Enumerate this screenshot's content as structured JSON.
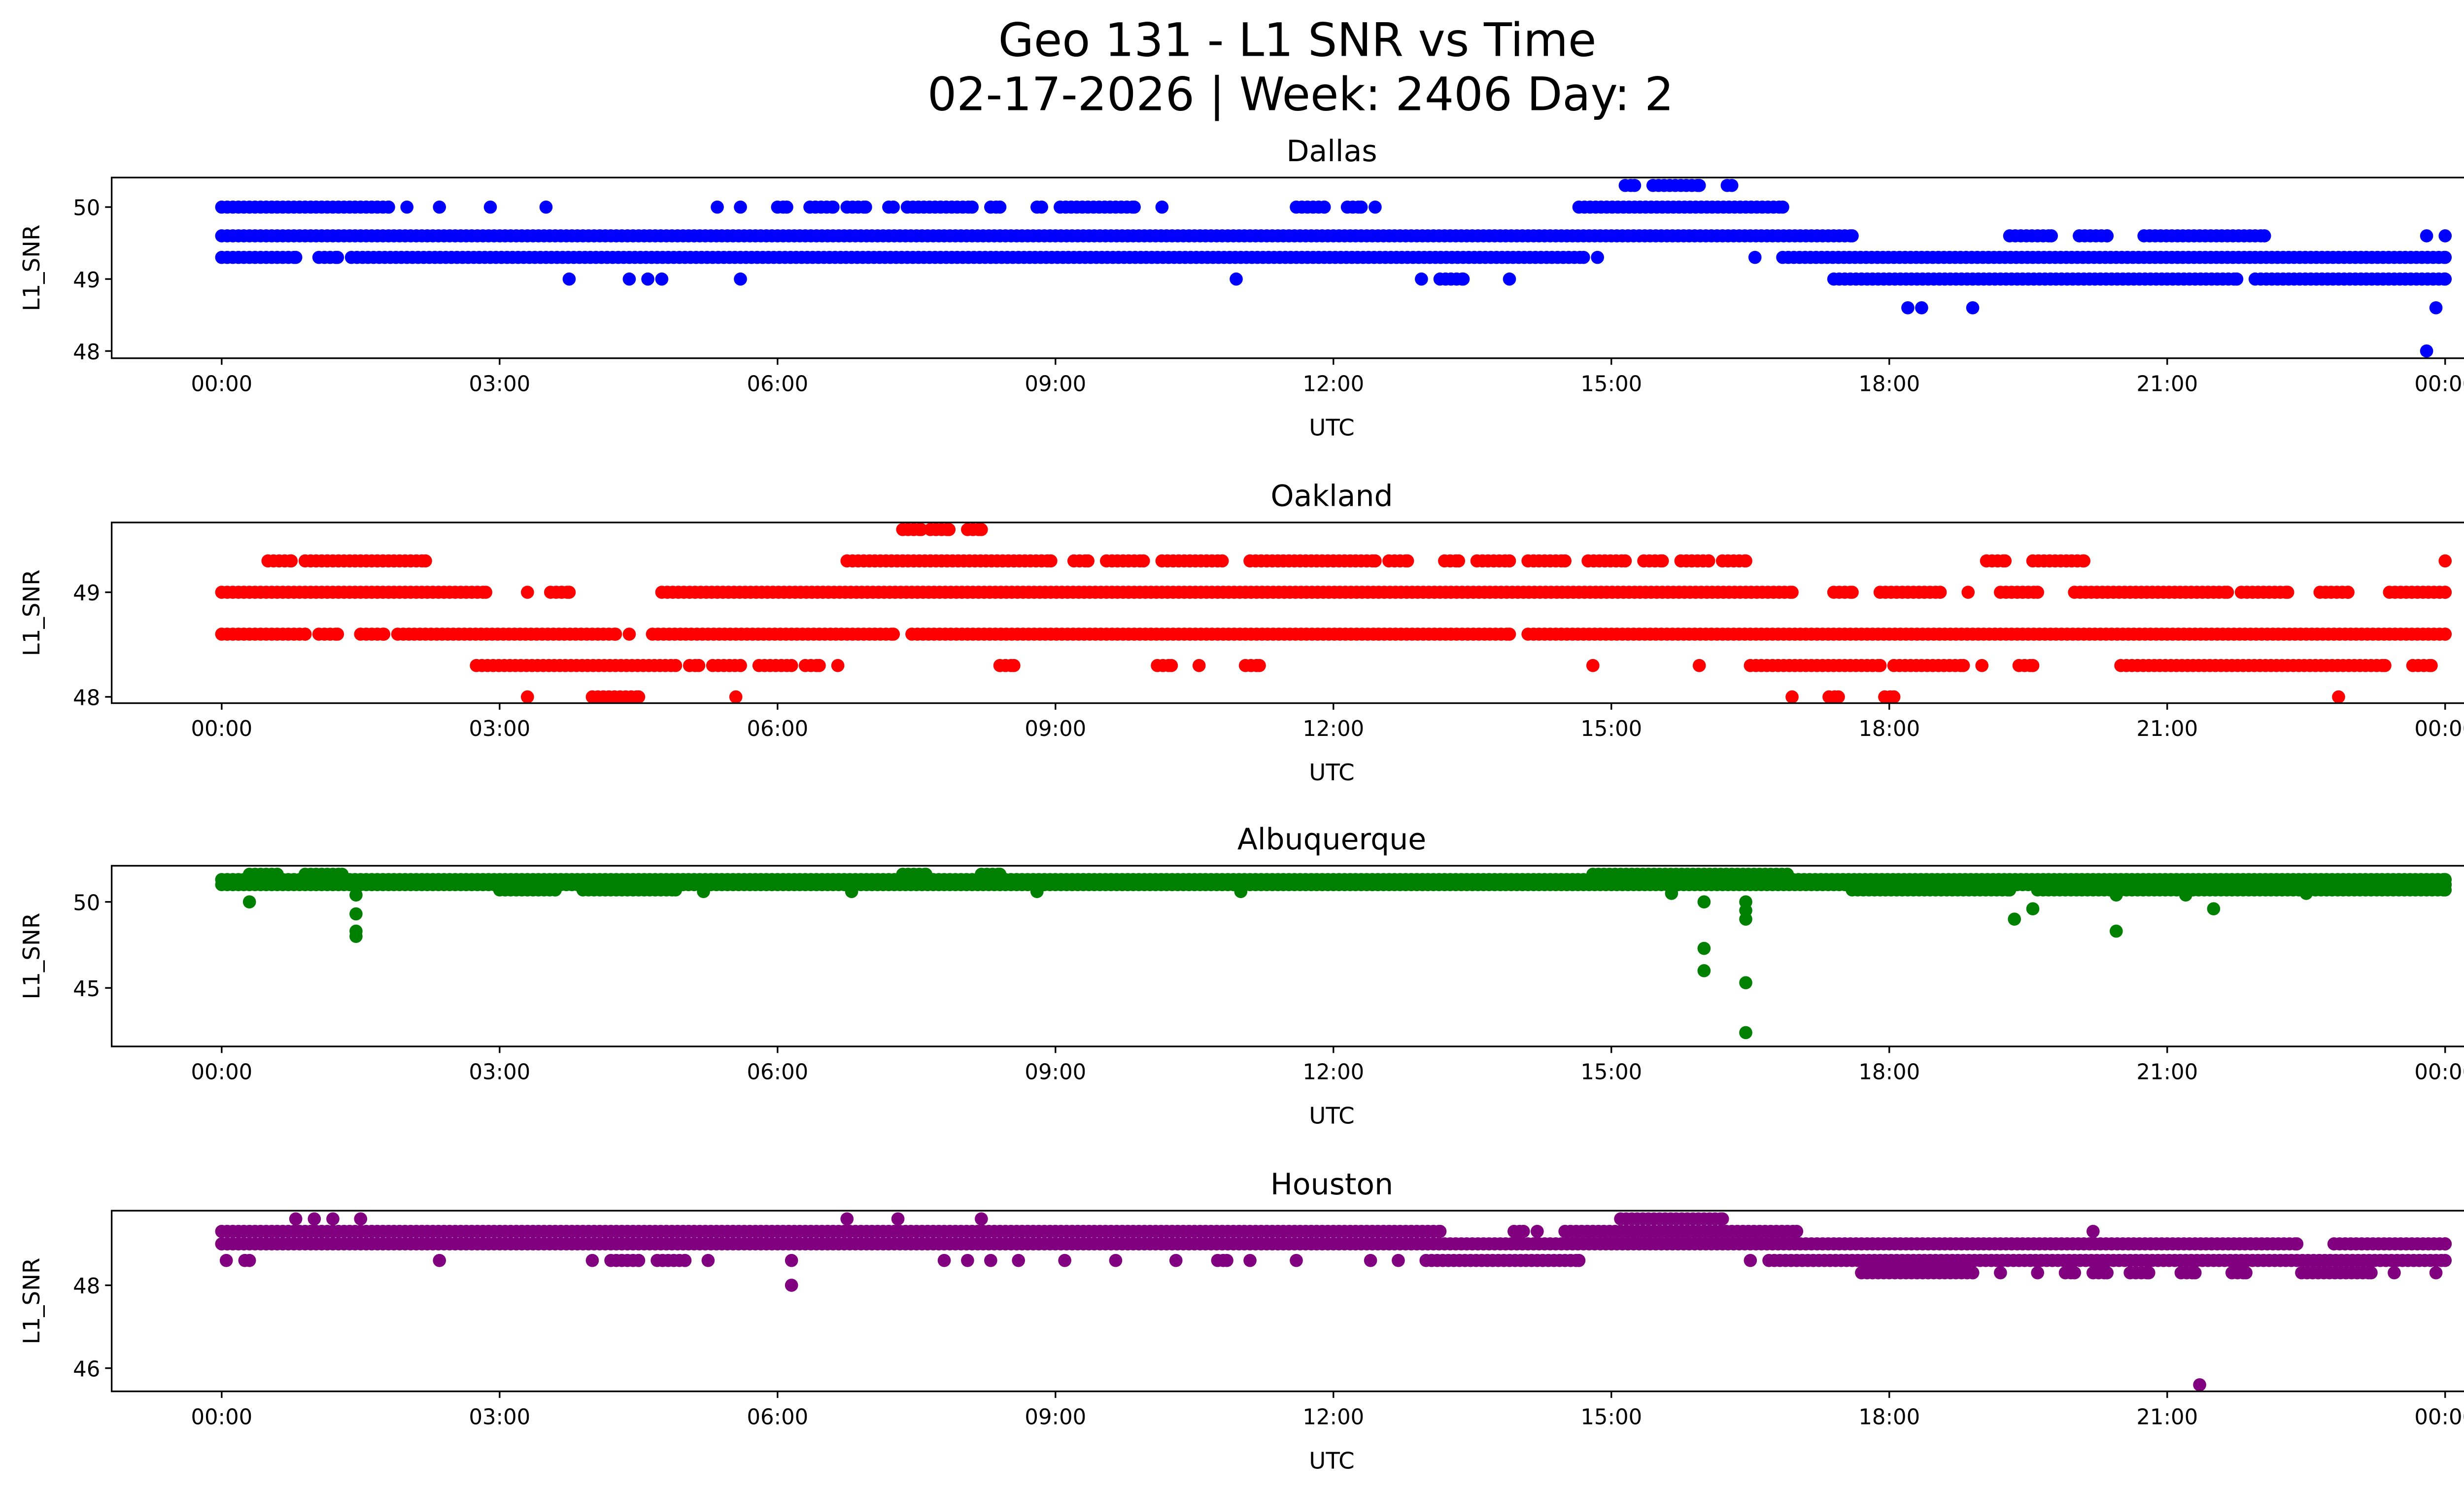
{
  "title_line1": "Geo 131 - L1 SNR vs Time",
  "title_line2": "02-17-2026 | Week: 2406 Day: 2",
  "chart_data": [
    {
      "type": "scatter",
      "title": "Dallas",
      "xlabel": "UTC",
      "ylabel": "L1_SNR",
      "color": "#0000ff",
      "xlim_hours": [
        -1.2,
        25.2
      ],
      "ylim": [
        47.9,
        50.41
      ],
      "xticks": [
        "00:00",
        "03:00",
        "06:00",
        "09:00",
        "12:00",
        "15:00",
        "18:00",
        "21:00",
        "00:00"
      ],
      "yticks": [
        48,
        49,
        50
      ],
      "runs": [
        [
          15.15,
          15.25,
          50.3
        ],
        [
          15.45,
          15.95,
          50.3
        ],
        [
          16.25,
          16.3,
          50.3
        ],
        [
          0.0,
          1.8,
          50.0
        ],
        [
          6.0,
          6.1,
          50.0
        ],
        [
          6.35,
          6.6,
          50.0
        ],
        [
          6.75,
          6.95,
          50.0
        ],
        [
          7.2,
          7.25,
          50.0
        ],
        [
          7.4,
          8.1,
          50.0
        ],
        [
          8.3,
          8.4,
          50.0
        ],
        [
          8.8,
          8.85,
          50.0
        ],
        [
          9.05,
          9.85,
          50.0
        ],
        [
          11.6,
          11.9,
          50.0
        ],
        [
          12.15,
          12.3,
          50.0
        ],
        [
          14.65,
          16.85,
          50.0
        ],
        [
          0.0,
          17.6,
          49.6
        ],
        [
          19.3,
          19.75,
          49.6
        ],
        [
          20.05,
          20.35,
          49.6
        ],
        [
          20.75,
          22.05,
          49.6
        ],
        [
          0.0,
          0.8,
          49.3
        ],
        [
          1.05,
          1.25,
          49.3
        ],
        [
          1.4,
          14.7,
          49.3
        ],
        [
          16.85,
          24.0,
          49.3
        ],
        [
          13.15,
          13.4,
          49.0
        ],
        [
          17.4,
          21.75,
          49.0
        ],
        [
          21.95,
          24.0,
          49.0
        ]
      ],
      "points": [
        [
          2.0,
          50.0
        ],
        [
          2.35,
          50.0
        ],
        [
          2.9,
          50.0
        ],
        [
          3.5,
          50.0
        ],
        [
          5.35,
          50.0
        ],
        [
          5.6,
          50.0
        ],
        [
          10.15,
          50.0
        ],
        [
          12.45,
          50.0
        ],
        [
          23.8,
          49.6
        ],
        [
          24.0,
          49.6
        ],
        [
          14.85,
          49.3
        ],
        [
          16.55,
          49.3
        ],
        [
          3.75,
          49.0
        ],
        [
          4.4,
          49.0
        ],
        [
          4.6,
          49.0
        ],
        [
          4.75,
          49.0
        ],
        [
          5.6,
          49.0
        ],
        [
          10.95,
          49.0
        ],
        [
          12.95,
          49.0
        ],
        [
          13.9,
          49.0
        ],
        [
          18.2,
          48.6
        ],
        [
          18.35,
          48.6
        ],
        [
          18.9,
          48.6
        ],
        [
          23.9,
          48.6
        ],
        [
          23.8,
          48.0
        ]
      ]
    },
    {
      "type": "scatter",
      "title": "Oakland",
      "xlabel": "UTC",
      "ylabel": "L1_SNR",
      "color": "#ff0000",
      "xlim_hours": [
        -1.2,
        25.2
      ],
      "ylim": [
        47.94,
        49.667
      ],
      "xticks": [
        "00:00",
        "03:00",
        "06:00",
        "09:00",
        "12:00",
        "15:00",
        "18:00",
        "21:00",
        "00:00"
      ],
      "yticks": [
        48,
        49
      ],
      "runs": [
        [
          7.35,
          7.55,
          49.6
        ],
        [
          7.65,
          7.85,
          49.6
        ],
        [
          8.05,
          8.2,
          49.6
        ],
        [
          0.5,
          0.75,
          49.3
        ],
        [
          0.9,
          2.2,
          49.3
        ],
        [
          6.75,
          8.95,
          49.3
        ],
        [
          9.2,
          9.35,
          49.3
        ],
        [
          9.55,
          9.95,
          49.3
        ],
        [
          10.15,
          10.8,
          49.3
        ],
        [
          11.1,
          12.45,
          49.3
        ],
        [
          12.6,
          12.8,
          49.3
        ],
        [
          13.2,
          13.35,
          49.3
        ],
        [
          13.55,
          13.9,
          49.3
        ],
        [
          14.1,
          14.5,
          49.3
        ],
        [
          14.75,
          15.15,
          49.3
        ],
        [
          15.35,
          15.55,
          49.3
        ],
        [
          15.75,
          16.05,
          49.3
        ],
        [
          16.2,
          16.45,
          49.3
        ],
        [
          19.05,
          19.25,
          49.3
        ],
        [
          19.55,
          20.1,
          49.3
        ],
        [
          0.0,
          2.85,
          49.0
        ],
        [
          3.55,
          3.75,
          49.0
        ],
        [
          4.75,
          16.95,
          49.0
        ],
        [
          17.4,
          17.6,
          49.0
        ],
        [
          17.9,
          18.55,
          49.0
        ],
        [
          19.2,
          19.6,
          49.0
        ],
        [
          20.0,
          21.65,
          49.0
        ],
        [
          21.8,
          22.3,
          49.0
        ],
        [
          22.65,
          22.95,
          49.0
        ],
        [
          23.4,
          24.0,
          49.0
        ],
        [
          0.0,
          0.9,
          48.6
        ],
        [
          1.05,
          1.25,
          48.6
        ],
        [
          1.5,
          1.75,
          48.6
        ],
        [
          1.9,
          4.25,
          48.6
        ],
        [
          4.65,
          7.25,
          48.6
        ],
        [
          7.45,
          13.9,
          48.6
        ],
        [
          14.1,
          24.0,
          48.6
        ],
        [
          2.75,
          4.9,
          48.3
        ],
        [
          5.05,
          5.15,
          48.3
        ],
        [
          5.3,
          5.6,
          48.3
        ],
        [
          5.8,
          6.15,
          48.3
        ],
        [
          6.3,
          6.45,
          48.3
        ],
        [
          8.4,
          8.55,
          48.3
        ],
        [
          10.1,
          10.25,
          48.3
        ],
        [
          11.05,
          11.2,
          48.3
        ],
        [
          16.5,
          17.9,
          48.3
        ],
        [
          18.05,
          18.8,
          48.3
        ],
        [
          19.4,
          19.55,
          48.3
        ],
        [
          20.5,
          23.35,
          48.3
        ],
        [
          23.65,
          23.85,
          48.3
        ],
        [
          4.0,
          4.5,
          48.0
        ],
        [
          17.35,
          17.45,
          48.0
        ],
        [
          17.95,
          18.05,
          48.0
        ]
      ],
      "points": [
        [
          24.0,
          49.3
        ],
        [
          3.3,
          49.0
        ],
        [
          18.85,
          49.0
        ],
        [
          4.4,
          48.6
        ],
        [
          6.65,
          48.3
        ],
        [
          10.55,
          48.3
        ],
        [
          14.8,
          48.3
        ],
        [
          15.95,
          48.3
        ],
        [
          19.0,
          48.3
        ],
        [
          3.3,
          48.0
        ],
        [
          5.55,
          48.0
        ],
        [
          16.95,
          48.0
        ],
        [
          22.85,
          48.0
        ]
      ]
    },
    {
      "type": "scatter",
      "title": "Albuquerque",
      "xlabel": "UTC",
      "ylabel": "L1_SNR",
      "color": "#008000",
      "xlim_hours": [
        -1.2,
        25.2
      ],
      "ylim": [
        41.6,
        52.1
      ],
      "xticks": [
        "00:00",
        "03:00",
        "06:00",
        "09:00",
        "12:00",
        "15:00",
        "18:00",
        "21:00",
        "00:00"
      ],
      "yticks": [
        45,
        50
      ],
      "runs": [
        [
          0.0,
          14.8,
          51.3
        ],
        [
          16.9,
          24.0,
          51.3
        ],
        [
          0.0,
          24.0,
          51.0
        ],
        [
          3.0,
          3.6,
          50.7
        ],
        [
          3.9,
          4.9,
          50.7
        ],
        [
          17.6,
          19.3,
          50.7
        ],
        [
          19.6,
          24.0,
          50.7
        ],
        [
          0.3,
          0.6,
          51.6
        ],
        [
          0.9,
          1.3,
          51.6
        ],
        [
          7.35,
          7.6,
          51.6
        ],
        [
          8.2,
          8.4,
          51.6
        ],
        [
          14.8,
          16.9,
          51.6
        ]
      ],
      "points": [
        [
          0.3,
          50.0
        ],
        [
          1.45,
          50.4
        ],
        [
          1.45,
          49.3
        ],
        [
          1.45,
          48.3
        ],
        [
          1.45,
          48.0
        ],
        [
          5.2,
          50.6
        ],
        [
          6.8,
          50.6
        ],
        [
          8.8,
          50.6
        ],
        [
          11.0,
          50.6
        ],
        [
          15.65,
          50.5
        ],
        [
          16.0,
          50.0
        ],
        [
          16.0,
          47.3
        ],
        [
          16.0,
          46.0
        ],
        [
          16.45,
          50.0
        ],
        [
          16.45,
          49.5
        ],
        [
          16.45,
          49.0
        ],
        [
          16.45,
          45.3
        ],
        [
          16.45,
          42.4
        ],
        [
          19.35,
          49.0
        ],
        [
          19.55,
          49.6
        ],
        [
          20.45,
          50.4
        ],
        [
          20.45,
          48.3
        ],
        [
          21.2,
          50.4
        ],
        [
          21.5,
          49.6
        ],
        [
          22.5,
          50.5
        ]
      ]
    },
    {
      "type": "scatter",
      "title": "Houston",
      "xlabel": "UTC",
      "ylabel": "L1_SNR",
      "color": "#800080",
      "xlim_hours": [
        -1.2,
        25.2
      ],
      "ylim": [
        45.44,
        49.8
      ],
      "xticks": [
        "00:00",
        "03:00",
        "06:00",
        "09:00",
        "12:00",
        "15:00",
        "18:00",
        "21:00",
        "00:00"
      ],
      "yticks": [
        46,
        48
      ],
      "runs": [
        [
          15.1,
          16.2,
          49.6
        ],
        [
          0.0,
          13.15,
          49.3
        ],
        [
          13.95,
          14.05,
          49.3
        ],
        [
          14.5,
          17.0,
          49.3
        ],
        [
          0.0,
          22.4,
          49.0
        ],
        [
          22.8,
          24.0,
          49.0
        ],
        [
          4.2,
          4.5,
          48.6
        ],
        [
          4.7,
          5.0,
          48.6
        ],
        [
          10.75,
          10.85,
          48.6
        ],
        [
          13.0,
          14.65,
          48.6
        ],
        [
          16.7,
          24.0,
          48.6
        ],
        [
          17.7,
          18.9,
          48.3
        ],
        [
          19.9,
          20.0,
          48.3
        ],
        [
          20.2,
          20.35,
          48.3
        ],
        [
          20.6,
          20.8,
          48.3
        ],
        [
          21.15,
          21.3,
          48.3
        ],
        [
          21.7,
          21.85,
          48.3
        ],
        [
          22.45,
          23.2,
          48.3
        ]
      ],
      "points": [
        [
          0.8,
          49.6
        ],
        [
          1.0,
          49.6
        ],
        [
          1.2,
          49.6
        ],
        [
          1.5,
          49.6
        ],
        [
          6.75,
          49.6
        ],
        [
          7.3,
          49.6
        ],
        [
          8.2,
          49.6
        ],
        [
          14.2,
          49.3
        ],
        [
          20.2,
          49.3
        ],
        [
          0.05,
          48.6
        ],
        [
          0.25,
          48.6
        ],
        [
          0.3,
          48.6
        ],
        [
          2.35,
          48.6
        ],
        [
          4.0,
          48.6
        ],
        [
          5.25,
          48.6
        ],
        [
          6.15,
          48.6
        ],
        [
          7.8,
          48.6
        ],
        [
          8.05,
          48.6
        ],
        [
          8.3,
          48.6
        ],
        [
          8.6,
          48.6
        ],
        [
          9.1,
          48.6
        ],
        [
          9.65,
          48.6
        ],
        [
          10.3,
          48.6
        ],
        [
          11.1,
          48.6
        ],
        [
          11.6,
          48.6
        ],
        [
          12.4,
          48.6
        ],
        [
          12.7,
          48.6
        ],
        [
          16.5,
          48.6
        ],
        [
          19.2,
          48.3
        ],
        [
          19.6,
          48.3
        ],
        [
          23.45,
          48.3
        ],
        [
          23.9,
          48.3
        ],
        [
          6.15,
          48.0
        ],
        [
          21.35,
          45.6
        ]
      ]
    }
  ]
}
